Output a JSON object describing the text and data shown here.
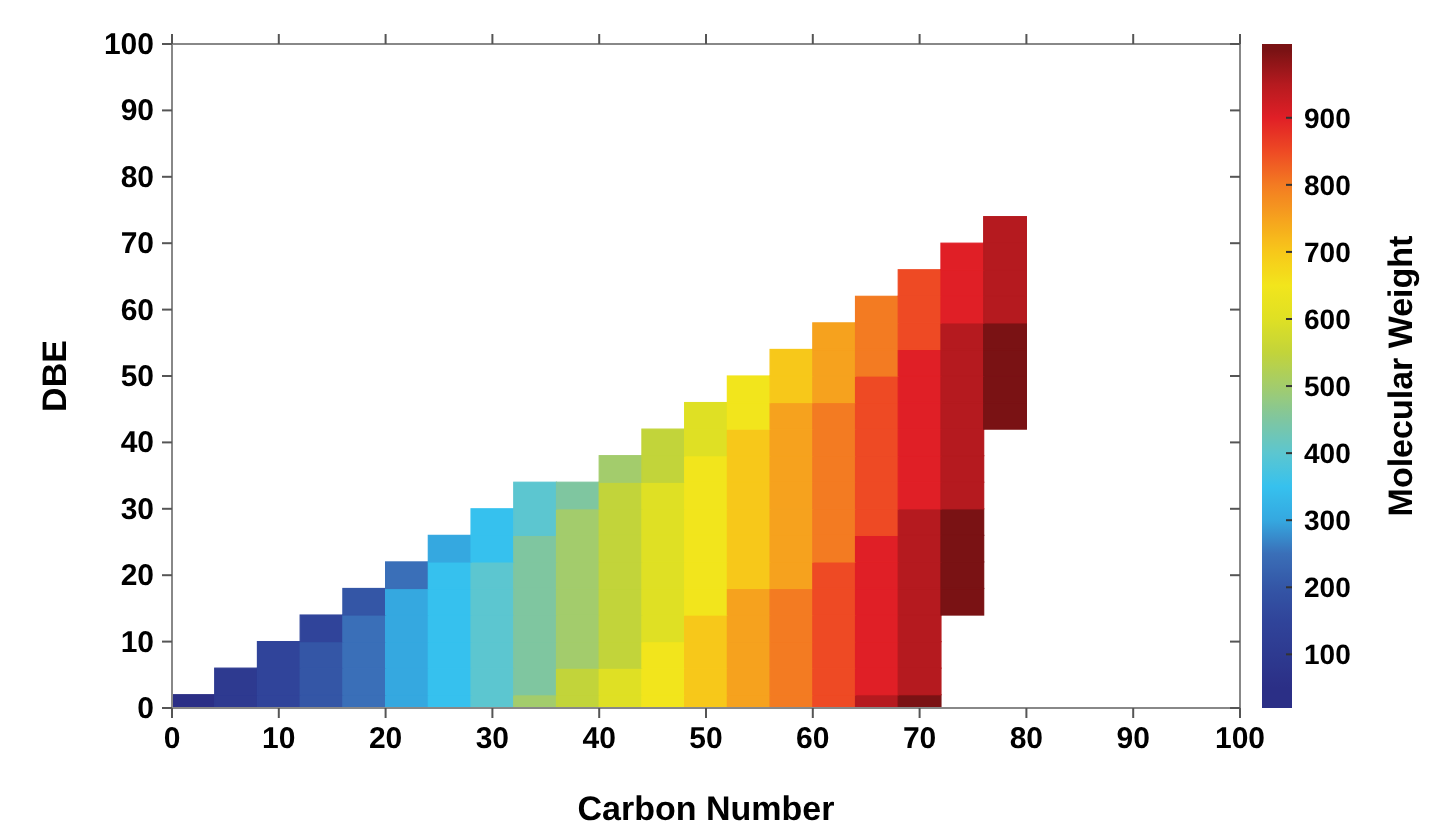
{
  "chart_data": {
    "type": "scatter",
    "marker": "square",
    "xlabel": "Carbon Number",
    "ylabel": "DBE",
    "clabel": "Molecular Weight",
    "xlim": [
      0,
      100
    ],
    "xticks": [
      0,
      10,
      20,
      30,
      40,
      50,
      60,
      70,
      80,
      90,
      100
    ],
    "ylim": [
      0,
      100
    ],
    "yticks": [
      0,
      10,
      20,
      30,
      40,
      50,
      60,
      70,
      80,
      90,
      100
    ],
    "clim": [
      20,
      1010
    ],
    "cticks": [
      100,
      200,
      300,
      400,
      500,
      600,
      700,
      800,
      900
    ],
    "series": [
      {
        "x": [
          2,
          6,
          10,
          14,
          18,
          22,
          26,
          30,
          34,
          38,
          42,
          46,
          50,
          54,
          58,
          62,
          66,
          70
        ],
        "values": [
          0,
          0,
          0,
          0,
          0,
          0,
          0,
          0,
          0,
          0,
          0,
          0,
          0,
          0,
          0,
          0,
          0,
          0
        ],
        "cvalues": [
          50,
          100,
          150,
          200,
          250,
          300,
          350,
          400,
          500,
          550,
          600,
          650,
          700,
          750,
          800,
          850,
          950,
          1000
        ],
        "colors": [
          "#2b2f86",
          "#2e3a90",
          "#30449a",
          "#3456a6",
          "#3a6fb8",
          "#35a8e0",
          "#36c1ee",
          "#5cc6d0",
          "#a3cc6c",
          "#c2d43a",
          "#dfe024",
          "#f2e51c",
          "#f7c81a",
          "#f6a21e",
          "#f37b22",
          "#ee4a24",
          "#b51a1f",
          "#7a1214"
        ]
      },
      {
        "x": [
          6,
          10,
          14,
          18,
          22,
          26,
          30,
          34,
          38,
          42,
          46,
          50,
          54,
          58,
          62,
          66,
          70
        ],
        "values": [
          4,
          4,
          4,
          4,
          4,
          4,
          4,
          4,
          4,
          4,
          4,
          4,
          4,
          4,
          4,
          4,
          4
        ],
        "cvalues": [
          100,
          150,
          200,
          250,
          300,
          350,
          400,
          450,
          550,
          600,
          650,
          700,
          750,
          800,
          850,
          900,
          950
        ],
        "colors": [
          "#2e3a90",
          "#30449a",
          "#3456a6",
          "#3a6fb8",
          "#35a8e0",
          "#36c1ee",
          "#5cc6d0",
          "#7fc6a0",
          "#c2d43a",
          "#dfe024",
          "#f2e51c",
          "#f7c81a",
          "#f6a21e",
          "#f37b22",
          "#ee4a24",
          "#e01f26",
          "#b51a1f"
        ]
      },
      {
        "x": [
          10,
          14,
          18,
          22,
          26,
          30,
          34,
          38,
          42,
          46,
          50,
          54,
          58,
          62,
          66,
          70
        ],
        "values": [
          8,
          8,
          8,
          8,
          8,
          8,
          8,
          8,
          8,
          8,
          8,
          8,
          8,
          8,
          8,
          8
        ],
        "cvalues": [
          150,
          200,
          250,
          300,
          350,
          400,
          450,
          500,
          550,
          650,
          700,
          750,
          800,
          850,
          900,
          950
        ],
        "colors": [
          "#30449a",
          "#3456a6",
          "#3a6fb8",
          "#35a8e0",
          "#36c1ee",
          "#5cc6d0",
          "#7fc6a0",
          "#a3cc6c",
          "#c2d43a",
          "#f2e51c",
          "#f7c81a",
          "#f6a21e",
          "#f37b22",
          "#ee4a24",
          "#e01f26",
          "#b51a1f"
        ]
      },
      {
        "x": [
          14,
          18,
          22,
          26,
          30,
          34,
          38,
          42,
          46,
          50,
          54,
          58,
          62,
          66,
          70
        ],
        "values": [
          12,
          12,
          12,
          12,
          12,
          12,
          12,
          12,
          12,
          12,
          12,
          12,
          12,
          12,
          12
        ],
        "cvalues": [
          150,
          250,
          300,
          350,
          400,
          450,
          500,
          550,
          600,
          700,
          750,
          800,
          850,
          900,
          950
        ],
        "colors": [
          "#30449a",
          "#3a6fb8",
          "#35a8e0",
          "#36c1ee",
          "#5cc6d0",
          "#7fc6a0",
          "#a3cc6c",
          "#c2d43a",
          "#dfe024",
          "#f7c81a",
          "#f6a21e",
          "#f37b22",
          "#ee4a24",
          "#e01f26",
          "#b51a1f"
        ]
      },
      {
        "x": [
          18,
          22,
          26,
          30,
          34,
          38,
          42,
          46,
          50,
          54,
          58,
          62,
          66,
          70,
          74
        ],
        "values": [
          16,
          16,
          16,
          16,
          16,
          16,
          16,
          16,
          16,
          16,
          16,
          16,
          16,
          16,
          16
        ],
        "cvalues": [
          200,
          300,
          350,
          400,
          450,
          500,
          550,
          600,
          650,
          750,
          800,
          850,
          900,
          950,
          1000
        ],
        "colors": [
          "#3456a6",
          "#35a8e0",
          "#36c1ee",
          "#5cc6d0",
          "#7fc6a0",
          "#a3cc6c",
          "#c2d43a",
          "#dfe024",
          "#f2e51c",
          "#f6a21e",
          "#f37b22",
          "#ee4a24",
          "#e01f26",
          "#b51a1f",
          "#7a1214"
        ]
      },
      {
        "x": [
          22,
          26,
          30,
          34,
          38,
          42,
          46,
          50,
          54,
          58,
          62,
          66,
          70,
          74
        ],
        "values": [
          20,
          20,
          20,
          20,
          20,
          20,
          20,
          20,
          20,
          20,
          20,
          20,
          20,
          20
        ],
        "cvalues": [
          250,
          350,
          400,
          450,
          500,
          550,
          600,
          650,
          700,
          750,
          850,
          900,
          950,
          1000
        ],
        "colors": [
          "#3a6fb8",
          "#36c1ee",
          "#5cc6d0",
          "#7fc6a0",
          "#a3cc6c",
          "#c2d43a",
          "#dfe024",
          "#f2e51c",
          "#f7c81a",
          "#f6a21e",
          "#ee4a24",
          "#e01f26",
          "#b51a1f",
          "#7a1214"
        ]
      },
      {
        "x": [
          26,
          30,
          34,
          38,
          42,
          46,
          50,
          54,
          58,
          62,
          66,
          70,
          74
        ],
        "values": [
          24,
          24,
          24,
          24,
          24,
          24,
          24,
          24,
          24,
          24,
          24,
          24,
          24
        ],
        "cvalues": [
          300,
          350,
          450,
          500,
          550,
          600,
          650,
          700,
          750,
          800,
          900,
          950,
          1000
        ],
        "colors": [
          "#35a8e0",
          "#36c1ee",
          "#7fc6a0",
          "#a3cc6c",
          "#c2d43a",
          "#dfe024",
          "#f2e51c",
          "#f7c81a",
          "#f6a21e",
          "#f37b22",
          "#e01f26",
          "#b51a1f",
          "#7a1214"
        ]
      },
      {
        "x": [
          30,
          34,
          38,
          42,
          46,
          50,
          54,
          58,
          62,
          66,
          70,
          74
        ],
        "values": [
          28,
          28,
          28,
          28,
          28,
          28,
          28,
          28,
          28,
          28,
          28,
          28
        ],
        "cvalues": [
          350,
          400,
          500,
          550,
          600,
          650,
          700,
          750,
          800,
          850,
          950,
          1000
        ],
        "colors": [
          "#36c1ee",
          "#5cc6d0",
          "#a3cc6c",
          "#c2d43a",
          "#dfe024",
          "#f2e51c",
          "#f7c81a",
          "#f6a21e",
          "#f37b22",
          "#ee4a24",
          "#b51a1f",
          "#7a1214"
        ]
      },
      {
        "x": [
          34,
          38,
          42,
          46,
          50,
          54,
          58,
          62,
          66,
          70,
          74
        ],
        "values": [
          32,
          32,
          32,
          32,
          32,
          32,
          32,
          32,
          32,
          32,
          32
        ],
        "cvalues": [
          400,
          450,
          550,
          600,
          650,
          700,
          750,
          800,
          850,
          900,
          950
        ],
        "colors": [
          "#5cc6d0",
          "#7fc6a0",
          "#c2d43a",
          "#dfe024",
          "#f2e51c",
          "#f7c81a",
          "#f6a21e",
          "#f37b22",
          "#ee4a24",
          "#e01f26",
          "#b51a1f"
        ]
      },
      {
        "x": [
          42,
          46,
          50,
          54,
          58,
          62,
          66,
          70,
          74
        ],
        "values": [
          36,
          36,
          36,
          36,
          36,
          36,
          36,
          36,
          36
        ],
        "cvalues": [
          500,
          550,
          650,
          700,
          750,
          800,
          850,
          900,
          950
        ],
        "colors": [
          "#a3cc6c",
          "#c2d43a",
          "#f2e51c",
          "#f7c81a",
          "#f6a21e",
          "#f37b22",
          "#ee4a24",
          "#e01f26",
          "#b51a1f"
        ]
      },
      {
        "x": [
          46,
          50,
          54,
          58,
          62,
          66,
          70,
          74
        ],
        "values": [
          40,
          40,
          40,
          40,
          40,
          40,
          40,
          40
        ],
        "cvalues": [
          550,
          600,
          700,
          750,
          800,
          850,
          900,
          950
        ],
        "colors": [
          "#c2d43a",
          "#dfe024",
          "#f7c81a",
          "#f6a21e",
          "#f37b22",
          "#ee4a24",
          "#e01f26",
          "#b51a1f"
        ]
      },
      {
        "x": [
          50,
          54,
          58,
          62,
          66,
          70,
          74,
          78
        ],
        "values": [
          44,
          44,
          44,
          44,
          44,
          44,
          44,
          44
        ],
        "cvalues": [
          600,
          650,
          750,
          800,
          850,
          900,
          950,
          1000
        ],
        "colors": [
          "#dfe024",
          "#f2e51c",
          "#f6a21e",
          "#f37b22",
          "#ee4a24",
          "#e01f26",
          "#b51a1f",
          "#7a1214"
        ]
      },
      {
        "x": [
          54,
          58,
          62,
          66,
          70,
          74,
          78
        ],
        "values": [
          48,
          48,
          48,
          48,
          48,
          48,
          48
        ],
        "cvalues": [
          650,
          700,
          750,
          850,
          900,
          950,
          1000
        ],
        "colors": [
          "#f2e51c",
          "#f7c81a",
          "#f6a21e",
          "#ee4a24",
          "#e01f26",
          "#b51a1f",
          "#7a1214"
        ]
      },
      {
        "x": [
          58,
          62,
          66,
          70,
          74,
          78
        ],
        "values": [
          52,
          52,
          52,
          52,
          52,
          52
        ],
        "cvalues": [
          700,
          750,
          800,
          900,
          950,
          1000
        ],
        "colors": [
          "#f7c81a",
          "#f6a21e",
          "#f37b22",
          "#e01f26",
          "#b51a1f",
          "#7a1214"
        ]
      },
      {
        "x": [
          62,
          66,
          70,
          74,
          78
        ],
        "values": [
          56,
          56,
          56,
          56,
          56
        ],
        "cvalues": [
          750,
          800,
          850,
          950,
          1000
        ],
        "colors": [
          "#f6a21e",
          "#f37b22",
          "#ee4a24",
          "#b51a1f",
          "#7a1214"
        ]
      },
      {
        "x": [
          66,
          70,
          74,
          78
        ],
        "values": [
          60,
          60,
          60,
          60
        ],
        "cvalues": [
          800,
          850,
          900,
          950
        ],
        "colors": [
          "#f37b22",
          "#ee4a24",
          "#e01f26",
          "#b51a1f"
        ]
      },
      {
        "x": [
          70,
          74,
          78
        ],
        "values": [
          64,
          64,
          64
        ],
        "cvalues": [
          850,
          900,
          950
        ],
        "colors": [
          "#ee4a24",
          "#e01f26",
          "#b51a1f"
        ]
      },
      {
        "x": [
          74,
          78
        ],
        "values": [
          68,
          68
        ],
        "cvalues": [
          900,
          950
        ],
        "colors": [
          "#e01f26",
          "#b51a1f"
        ]
      },
      {
        "x": [
          78
        ],
        "values": [
          72
        ],
        "cvalues": [
          950
        ],
        "colors": [
          "#b51a1f"
        ]
      }
    ]
  }
}
